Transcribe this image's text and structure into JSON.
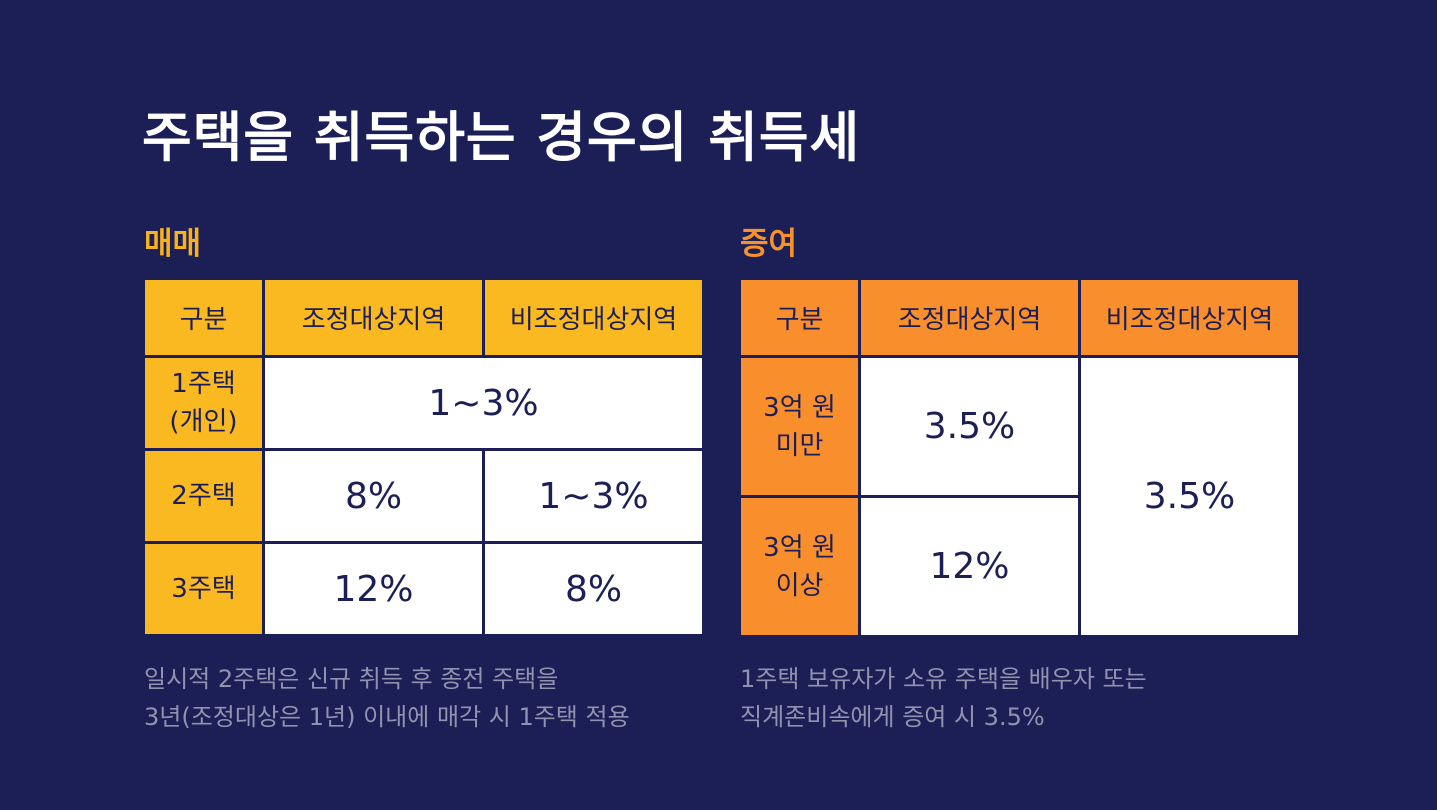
{
  "title": "주택을 취득하는 경우의 취득세",
  "sale": {
    "label": "매매",
    "headers": [
      "구분",
      "조정대상지역",
      "비조정대상지역"
    ],
    "rows": [
      {
        "category_line1": "1주택",
        "category_line2": "(개인)",
        "merged": "1~3%"
      },
      {
        "category": "2주택",
        "adjusted": "8%",
        "non_adjusted": "1~3%"
      },
      {
        "category": "3주택",
        "adjusted": "12%",
        "non_adjusted": "8%"
      }
    ],
    "note_line1": "일시적 2주택은 신규 취득 후 종전 주택을",
    "note_line2": "3년(조정대상은 1년) 이내에 매각 시 1주택 적용"
  },
  "gift": {
    "label": "증여",
    "headers": [
      "구분",
      "조정대상지역",
      "비조정대상지역"
    ],
    "rows": [
      {
        "category_line1": "3억 원",
        "category_line2": "미만",
        "adjusted": "3.5%"
      },
      {
        "category_line1": "3억 원",
        "category_line2": "이상",
        "adjusted": "12%"
      }
    ],
    "non_adjusted_merged": "3.5%",
    "note_line1": "1주택 보유자가 소유 주택을 배우자 또는",
    "note_line2": "직계존비속에게 증여 시 3.5%"
  },
  "colors": {
    "background": "#1c1f55",
    "sale_accent": "#fbb921",
    "gift_accent": "#f98e2d"
  }
}
